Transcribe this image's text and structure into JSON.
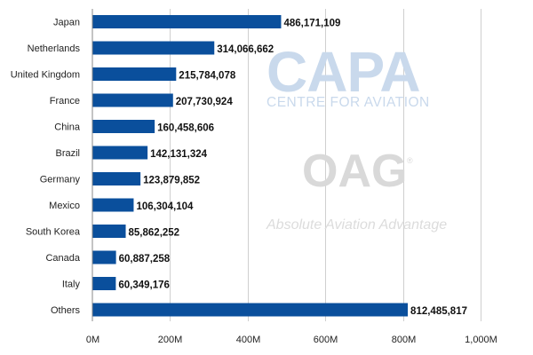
{
  "chart_data": {
    "type": "bar",
    "orientation": "horizontal",
    "title": "",
    "xlabel": "",
    "ylabel": "",
    "xlim": [
      0,
      1000000000
    ],
    "grid": true,
    "bar_color": "#0a4f9c",
    "x_ticks": [
      {
        "value": 0,
        "label": "0M"
      },
      {
        "value": 200000000,
        "label": "200M"
      },
      {
        "value": 400000000,
        "label": "400M"
      },
      {
        "value": 600000000,
        "label": "600M"
      },
      {
        "value": 800000000,
        "label": "800M"
      },
      {
        "value": 1000000000,
        "label": "1,000M"
      }
    ],
    "categories": [
      "Japan",
      "Netherlands",
      "United Kingdom",
      "France",
      "China",
      "Brazil",
      "Germany",
      "Mexico",
      "South Korea",
      "Canada",
      "Italy",
      "Others"
    ],
    "values": [
      486171109,
      314066662,
      215784078,
      207730924,
      160458606,
      142131324,
      123879852,
      106304104,
      85862252,
      60887258,
      60349176,
      812485817
    ],
    "value_labels": [
      "486,171,109",
      "314,066,662",
      "215,784,078",
      "207,730,924",
      "160,458,606",
      "142,131,324",
      "123,879,852",
      "106,304,104",
      "85,862,252",
      "60,887,258",
      "60,349,176",
      "812,485,817"
    ]
  },
  "watermarks": {
    "capa_logo": "CAPA",
    "capa_tagline": "CENTRE FOR AVIATION",
    "oag_logo": "OAG",
    "oag_registered": "®",
    "oag_tagline": "Absolute Aviation Advantage"
  }
}
